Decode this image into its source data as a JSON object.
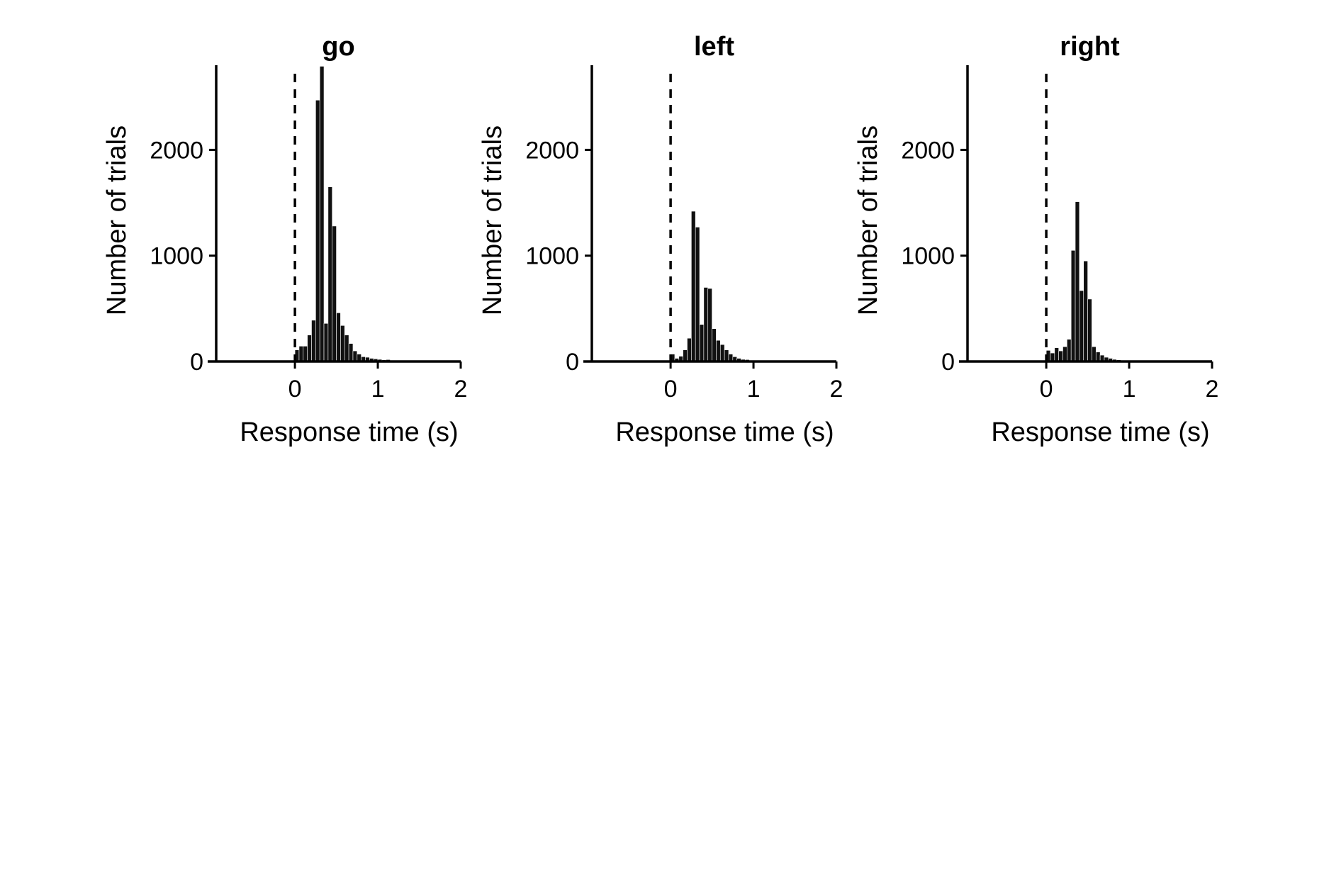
{
  "chart_data": [
    {
      "type": "bar",
      "title": "go",
      "xlabel": "Response time (s)",
      "ylabel": "Number of trials",
      "xlim": [
        -0.95,
        2.0
      ],
      "ylim": [
        0,
        2800
      ],
      "xticks": [
        0,
        1,
        2
      ],
      "xtick_labels": [
        "0",
        "1",
        "2"
      ],
      "yticks": [
        0,
        1000,
        2000
      ],
      "ytick_labels": [
        "0",
        "1000",
        "2000"
      ],
      "reference_line_x": 0,
      "bin_width": 0.05,
      "bin_start": 0.0,
      "values": [
        110,
        145,
        145,
        250,
        390,
        2470,
        2790,
        360,
        1650,
        1280,
        460,
        340,
        250,
        170,
        100,
        70,
        45,
        40,
        30,
        25,
        20,
        15,
        18,
        10,
        8,
        7,
        6,
        5,
        5,
        4,
        4,
        3,
        3,
        2,
        2,
        2,
        1,
        1,
        1,
        1
      ]
    },
    {
      "type": "bar",
      "title": "left",
      "xlabel": "Response time (s)",
      "ylabel": "Number of trials",
      "xlim": [
        -0.95,
        2.0
      ],
      "ylim": [
        0,
        2800
      ],
      "xticks": [
        0,
        1,
        2
      ],
      "xtick_labels": [
        "0",
        "1",
        "2"
      ],
      "yticks": [
        0,
        1000,
        2000
      ],
      "ytick_labels": [
        "0",
        "1000",
        "2000"
      ],
      "reference_line_x": 0,
      "bin_width": 0.05,
      "bin_start": 0.0,
      "values": [
        70,
        30,
        50,
        110,
        220,
        1420,
        1270,
        350,
        700,
        690,
        310,
        200,
        160,
        110,
        70,
        45,
        30,
        20,
        18,
        12,
        10,
        8,
        6,
        5,
        4,
        3,
        3,
        2,
        2,
        2,
        1,
        1,
        1,
        1,
        1,
        1,
        0,
        0,
        0,
        0
      ]
    },
    {
      "type": "bar",
      "title": "right",
      "xlabel": "Response time (s)",
      "ylabel": "Number of trials",
      "xlim": [
        -0.95,
        2.0
      ],
      "ylim": [
        0,
        2800
      ],
      "xticks": [
        0,
        1,
        2
      ],
      "xtick_labels": [
        "0",
        "1",
        "2"
      ],
      "yticks": [
        0,
        1000,
        2000
      ],
      "ytick_labels": [
        "0",
        "1000",
        "2000"
      ],
      "reference_line_x": 0,
      "bin_width": 0.05,
      "bin_start": 0.0,
      "values": [
        105,
        80,
        130,
        100,
        140,
        210,
        1050,
        1510,
        670,
        950,
        590,
        140,
        90,
        60,
        40,
        30,
        20,
        15,
        12,
        10,
        8,
        6,
        5,
        4,
        3,
        3,
        2,
        2,
        2,
        1,
        1,
        1,
        1,
        1,
        1,
        1,
        0,
        0,
        0,
        0
      ]
    }
  ]
}
